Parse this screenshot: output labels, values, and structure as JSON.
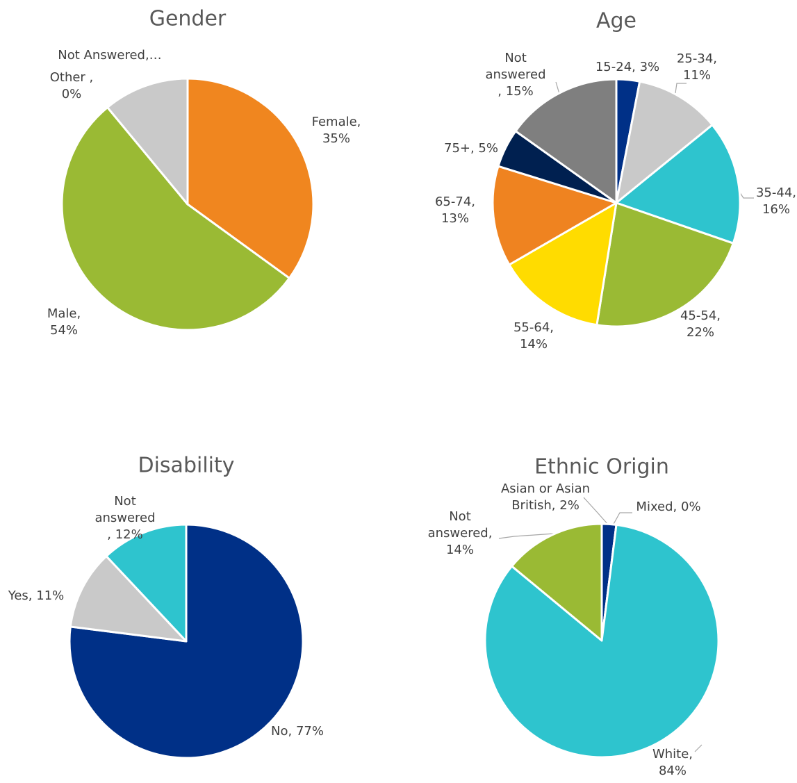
{
  "chart_data": [
    {
      "type": "pie",
      "title": "Gender",
      "values": [
        35,
        54,
        0,
        11
      ],
      "value_labels": [
        "Female,\n35%",
        "Male,\n54%",
        "Other ,\n0%",
        "Not Answered,…"
      ],
      "colors": [
        "#f0861f",
        "#9aba34",
        "#ffffff",
        "#c9c9c9"
      ]
    },
    {
      "type": "pie",
      "title": "Age",
      "values": [
        3,
        11,
        16,
        22,
        14,
        13,
        5,
        15
      ],
      "value_labels": [
        "15-24, 3%",
        "25-34,\n11%",
        "35-44,\n16%",
        "45-54,\n22%",
        "55-64,\n14%",
        "65-74,\n13%",
        "75+, 5%",
        "Not\nanswered\n, 15%"
      ],
      "colors": [
        "#003087",
        "#c9c9c9",
        "#2ec4ce",
        "#9aba34",
        "#ffdc00",
        "#ef8320",
        "#002050",
        "#7f7f7f"
      ]
    },
    {
      "type": "pie",
      "title": "Disability",
      "values": [
        77,
        11,
        12
      ],
      "value_labels": [
        "No, 77%",
        "Yes, 11%",
        "Not\nanswered\n, 12%"
      ],
      "colors": [
        "#003087",
        "#c9c9c9",
        "#2ec4ce"
      ]
    },
    {
      "type": "pie",
      "title": "Ethnic Origin",
      "values": [
        2,
        0,
        84,
        14
      ],
      "value_labels": [
        "Asian or Asian\nBritish, 2%",
        "Mixed, 0%",
        "White,\n84%",
        "Not\nanswered,\n14%"
      ],
      "colors": [
        "#003087",
        "#ffffff",
        "#2ec4ce",
        "#9aba34"
      ]
    }
  ]
}
